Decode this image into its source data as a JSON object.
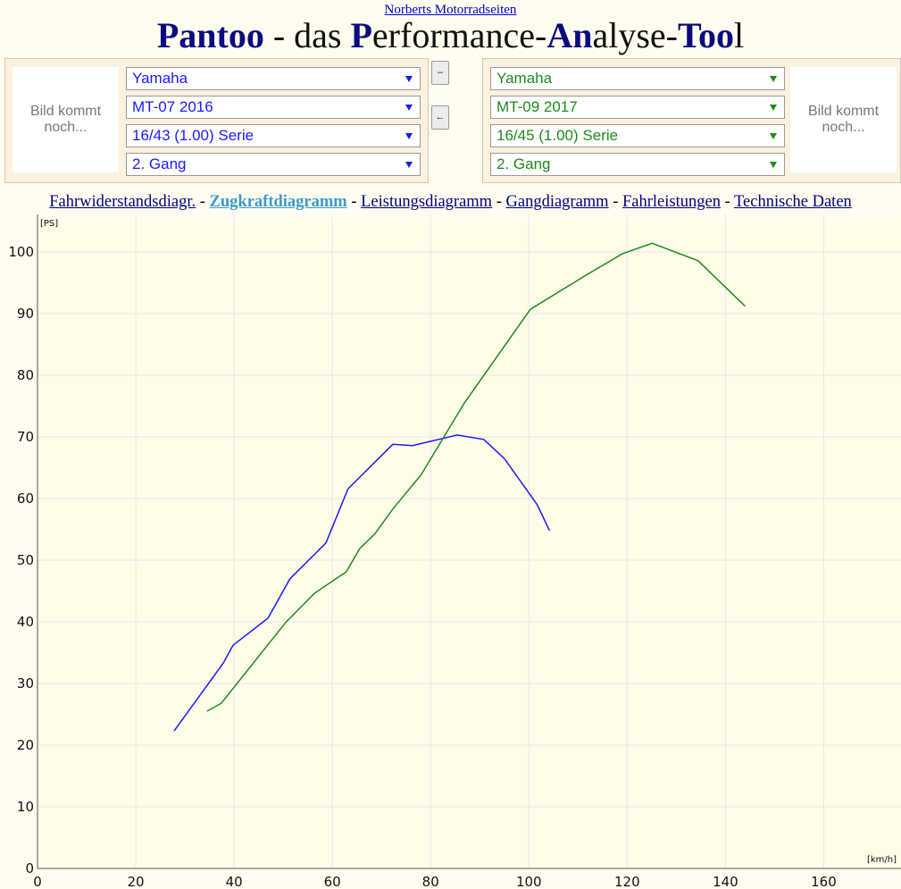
{
  "header": {
    "link": "Norberts Motorradseiten",
    "title_parts": [
      "Pantoo",
      " - das ",
      "P",
      "erformance-",
      "An",
      "alyse-",
      "Too",
      "l"
    ]
  },
  "left_panel": {
    "image_text": "Bild kommt noch...",
    "color": "#1a1aff",
    "selects": [
      "Yamaha",
      "MT-07 2016",
      "16/43 (1.00) Serie",
      "2. Gang"
    ]
  },
  "buttons": [
    "–",
    "←"
  ],
  "right_panel": {
    "image_text": "Bild kommt noch...",
    "color": "#1e8a1e",
    "selects": [
      "Yamaha",
      "MT-09 2017",
      "16/45 (1.00) Serie",
      "2. Gang"
    ]
  },
  "nav": {
    "links": [
      "Fahrwiderstandsdiagr.",
      "Zugkraftdiagramm",
      "Leistungsdiagramm",
      "Gangdiagramm",
      "Fahrleistungen",
      "Technische Daten"
    ],
    "active": 1,
    "separator": "-"
  },
  "chart_data": {
    "type": "line",
    "x_label": "[km/h]",
    "y_label": "[PS]",
    "xlim": [
      0,
      175
    ],
    "xticks": [
      0,
      20,
      40,
      60,
      80,
      100,
      120,
      140,
      160
    ],
    "ylim": [
      0,
      105
    ],
    "yticks": [
      0,
      10,
      20,
      30,
      40,
      50,
      60,
      70,
      80,
      90,
      100
    ],
    "grid": true,
    "series": [
      {
        "name": "MT-07 2016",
        "color": "#1a1aff",
        "x": [
          27.8,
          37.8,
          39.8,
          46.9,
          51.4,
          58.7,
          63.2,
          72.3,
          76.3,
          85.4,
          90.8,
          95.0,
          101.7,
          104.2
        ],
        "values": [
          22.3,
          33.3,
          36.2,
          40.6,
          47.0,
          52.8,
          61.6,
          68.8,
          68.6,
          70.3,
          69.6,
          66.5,
          59.0,
          54.8
        ]
      },
      {
        "name": "MT-09 2017",
        "color": "#1e8a1e",
        "x": [
          34.5,
          37.4,
          50.5,
          56.3,
          62.8,
          65.6,
          68.7,
          72.3,
          78.1,
          86.8,
          100.3,
          112.2,
          119.0,
          125.1,
          134.4,
          144.0
        ],
        "values": [
          25.5,
          26.8,
          39.9,
          44.6,
          48.1,
          51.9,
          54.3,
          58.3,
          63.9,
          75.4,
          90.7,
          96.5,
          99.7,
          101.4,
          98.6,
          91.2
        ]
      }
    ]
  }
}
